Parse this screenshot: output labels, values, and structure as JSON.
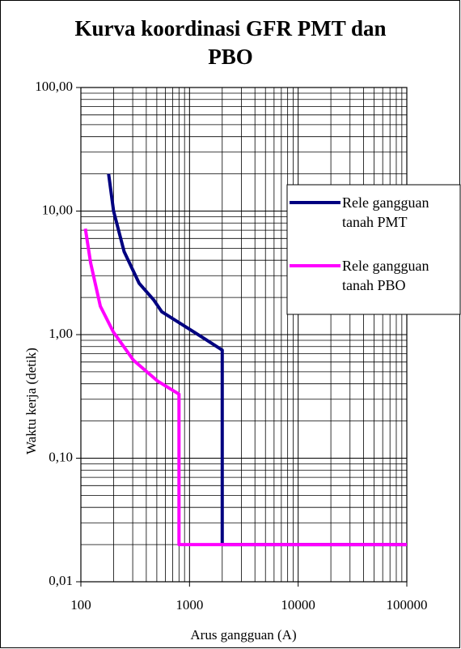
{
  "chart_data": {
    "type": "line",
    "title": "Kurva koordinasi GFR PMT dan PBO",
    "x_label": "Arus gangguan (A)",
    "y_label": "Waktu kerja (detik)",
    "x_scale": "log",
    "y_scale": "log",
    "grid": true,
    "xlim": [
      100,
      100000
    ],
    "xticks": [
      100,
      1000,
      10000,
      100000
    ],
    "ylim": [
      0.01,
      100
    ],
    "yticks": [
      {
        "value": 0.01,
        "label": "0,01"
      },
      {
        "value": 0.1,
        "label": "0,10"
      },
      {
        "value": 1,
        "label": "1,00"
      },
      {
        "value": 10,
        "label": "10,00"
      },
      {
        "value": 100,
        "label": "100,00"
      }
    ],
    "series": [
      {
        "name": "Rele gangguan tanah PMT",
        "color": "#000080",
        "x": [
          180,
          200,
          250,
          344,
          470,
          556,
          1100,
          2000,
          2000,
          100000
        ],
        "values": [
          20,
          10,
          4.7,
          2.6,
          1.9,
          1.53,
          1.05,
          0.75,
          0.02,
          0.02
        ]
      },
      {
        "name": "Rele gangguan tanah PBO",
        "color": "#ff00ff",
        "x": [
          110,
          123,
          151,
          199,
          305,
          510,
          800,
          800,
          100000
        ],
        "values": [
          7.2,
          3.8,
          1.7,
          1.05,
          0.62,
          0.42,
          0.33,
          0.02,
          0.02
        ]
      }
    ]
  }
}
